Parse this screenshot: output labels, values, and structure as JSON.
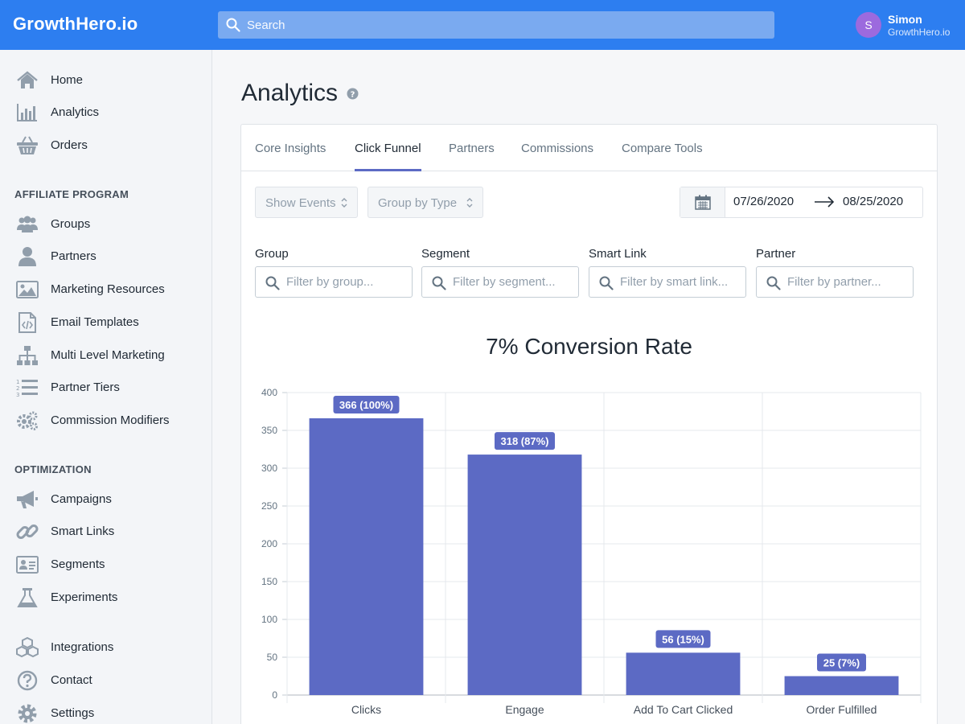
{
  "header": {
    "brand": "GrowthHero.io",
    "search_placeholder": "Search",
    "user": {
      "initial": "S",
      "name": "Simon",
      "org": "GrowthHero.io"
    }
  },
  "sidebar": {
    "main": [
      {
        "label": "Home",
        "icon": "home-icon"
      },
      {
        "label": "Analytics",
        "icon": "bar-chart-icon"
      },
      {
        "label": "Orders",
        "icon": "basket-icon"
      }
    ],
    "affiliate_title": "AFFILIATE PROGRAM",
    "affiliate": [
      {
        "label": "Groups",
        "icon": "users-icon"
      },
      {
        "label": "Partners",
        "icon": "user-icon"
      },
      {
        "label": "Marketing Resources",
        "icon": "image-icon"
      },
      {
        "label": "Email Templates",
        "icon": "code-file-icon"
      },
      {
        "label": "Multi Level Marketing",
        "icon": "hierarchy-icon"
      },
      {
        "label": "Partner Tiers",
        "icon": "numbered-list-icon"
      },
      {
        "label": "Commission Modifiers",
        "icon": "gears-icon"
      }
    ],
    "optimization_title": "OPTIMIZATION",
    "optimization": [
      {
        "label": "Campaigns",
        "icon": "megaphone-icon"
      },
      {
        "label": "Smart Links",
        "icon": "link-icon"
      },
      {
        "label": "Segments",
        "icon": "id-card-icon"
      },
      {
        "label": "Experiments",
        "icon": "flask-icon"
      }
    ],
    "bottom": [
      {
        "label": "Integrations",
        "icon": "cubes-icon"
      },
      {
        "label": "Contact",
        "icon": "question-icon"
      },
      {
        "label": "Settings",
        "icon": "gear-icon"
      }
    ]
  },
  "page": {
    "title": "Analytics",
    "tabs": [
      {
        "label": "Core Insights"
      },
      {
        "label": "Click Funnel",
        "active": true
      },
      {
        "label": "Partners"
      },
      {
        "label": "Commissions"
      },
      {
        "label": "Compare Tools"
      }
    ],
    "show_events": "Show Events",
    "group_by": "Group by Type",
    "date_from": "07/26/2020",
    "date_to": "08/25/2020",
    "filters": [
      {
        "label": "Group",
        "placeholder": "Filter by group..."
      },
      {
        "label": "Segment",
        "placeholder": "Filter by segment..."
      },
      {
        "label": "Smart Link",
        "placeholder": "Filter by smart link..."
      },
      {
        "label": "Partner",
        "placeholder": "Filter by partner..."
      }
    ]
  },
  "colors": {
    "header": "#2d7ef0",
    "accent": "#5c6ac4",
    "bar": "#5c6ac4"
  },
  "chart_data": {
    "type": "bar",
    "title": "7% Conversion Rate",
    "categories": [
      "Clicks",
      "Engage",
      "Add To Cart Clicked",
      "Order Fulfilled"
    ],
    "values": [
      366,
      318,
      56,
      25
    ],
    "data_labels": [
      "366 (100%)",
      "318 (87%)",
      "56 (15%)",
      "25 (7%)"
    ],
    "y_ticks": [
      0,
      50,
      100,
      150,
      200,
      250,
      300,
      350,
      400
    ],
    "ylim": [
      0,
      400
    ],
    "grid": true
  }
}
